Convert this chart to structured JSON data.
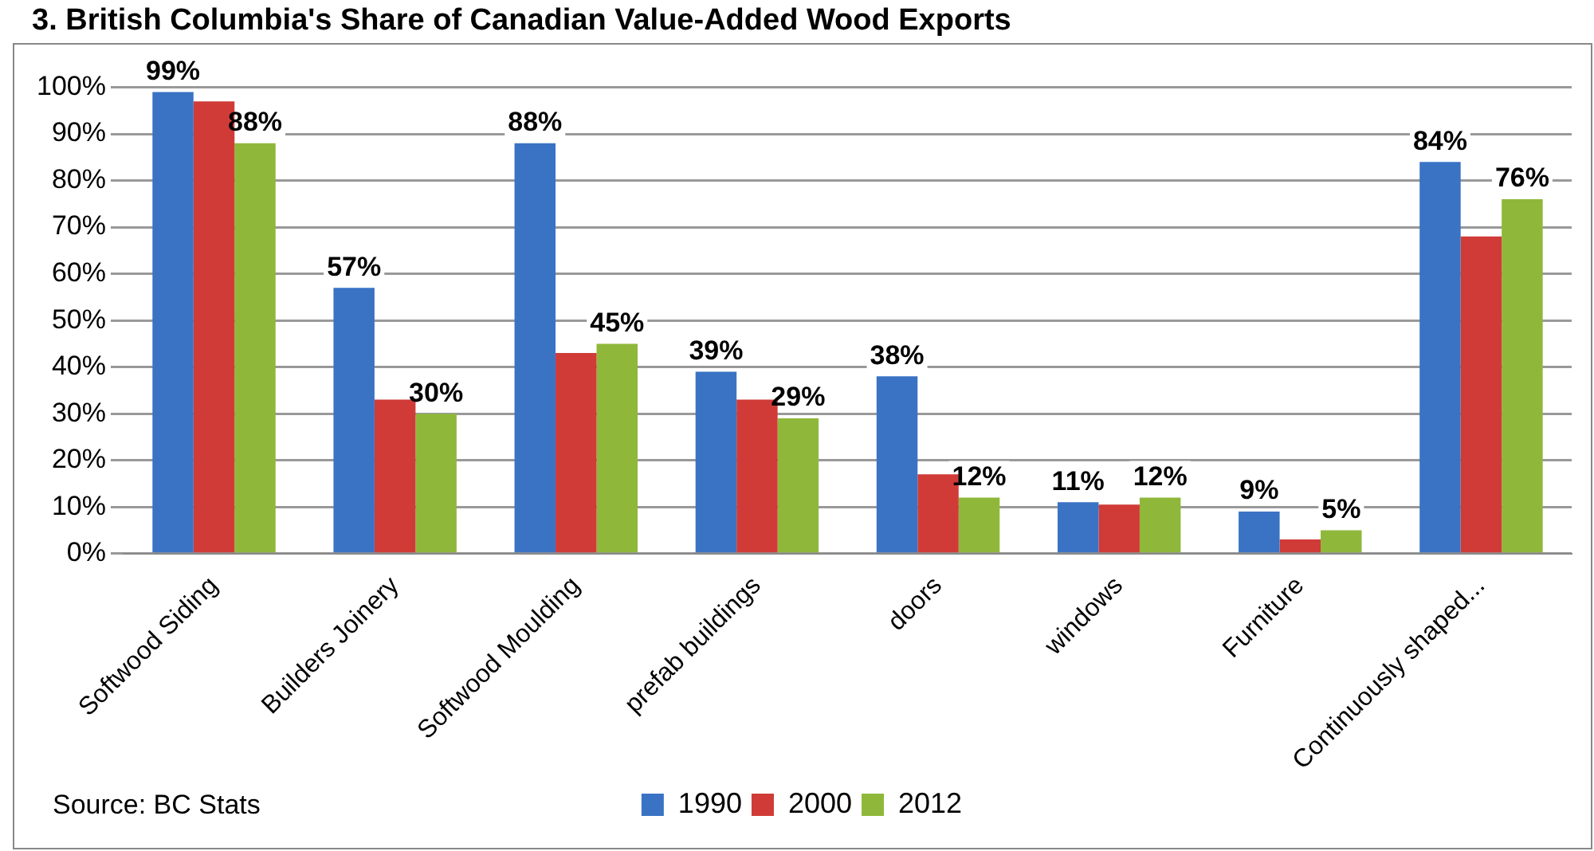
{
  "chart_data": {
    "type": "bar",
    "title": "3. British Columbia's Share of Canadian Value-Added Wood Exports",
    "categories": [
      "Softwood Siding",
      "Builders Joinery",
      "Softwood Moulding",
      "prefab buildings",
      "doors",
      "windows",
      "Furniture",
      "Continuously shaped..."
    ],
    "series": [
      {
        "name": "1990",
        "color": "#3a73c4",
        "values": [
          99,
          57,
          88,
          39,
          38,
          11,
          9,
          84
        ],
        "value_labels": [
          "99%",
          "57%",
          "88%",
          "39%",
          "38%",
          "11%",
          "9%",
          "84%"
        ]
      },
      {
        "name": "2000",
        "color": "#d03b37",
        "values": [
          97,
          33,
          43,
          33,
          17,
          10.5,
          3,
          68
        ]
      },
      {
        "name": "2012",
        "color": "#8fb83a",
        "values": [
          88,
          30,
          45,
          29,
          12,
          12,
          5,
          76
        ],
        "value_labels": [
          "88%",
          "30%",
          "45%",
          "29%",
          "12%",
          "12%",
          "5%",
          "76%"
        ]
      }
    ],
    "ylim": [
      0,
      100
    ],
    "yticks": [
      {
        "value": 0,
        "label": "0%"
      },
      {
        "value": 10,
        "label": "10%"
      },
      {
        "value": 20,
        "label": "20%"
      },
      {
        "value": 30,
        "label": "30%"
      },
      {
        "value": 40,
        "label": "40%"
      },
      {
        "value": 50,
        "label": "50%"
      },
      {
        "value": 60,
        "label": "60%"
      },
      {
        "value": 70,
        "label": "70%"
      },
      {
        "value": 80,
        "label": "80%"
      },
      {
        "value": 90,
        "label": "90%"
      },
      {
        "value": 100,
        "label": "100%"
      }
    ],
    "grid": "y",
    "legend": "bottom",
    "annotations": [
      "Source: BC Stats"
    ]
  }
}
